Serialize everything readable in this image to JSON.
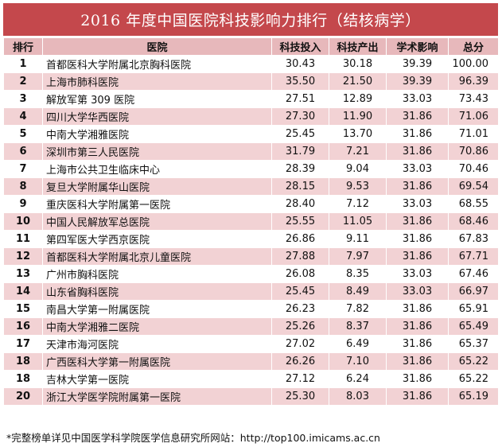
{
  "title": "2016 年度中国医院科技影响力排行（结核病学）",
  "headers": {
    "rank": "排行",
    "hospital": "医院",
    "tech_input": "科技投入",
    "tech_output": "科技产出",
    "academic": "学术影响",
    "total": "总分"
  },
  "rows": [
    {
      "rank": "1",
      "hospital": "首都医科大学附属北京胸科医院",
      "tech_input": "30.43",
      "tech_output": "30.18",
      "academic": "39.39",
      "total": "100.00"
    },
    {
      "rank": "2",
      "hospital": "上海市肺科医院",
      "tech_input": "35.50",
      "tech_output": "21.50",
      "academic": "39.39",
      "total": "96.39"
    },
    {
      "rank": "3",
      "hospital": "解放军第 309 医院",
      "tech_input": "27.51",
      "tech_output": "12.89",
      "academic": "33.03",
      "total": "73.43"
    },
    {
      "rank": "4",
      "hospital": "四川大学华西医院",
      "tech_input": "27.30",
      "tech_output": "11.90",
      "academic": "31.86",
      "total": "71.06"
    },
    {
      "rank": "5",
      "hospital": "中南大学湘雅医院",
      "tech_input": "25.45",
      "tech_output": "13.70",
      "academic": "31.86",
      "total": "71.01"
    },
    {
      "rank": "6",
      "hospital": "深圳市第三人民医院",
      "tech_input": "31.79",
      "tech_output": "7.21",
      "academic": "31.86",
      "total": "70.86"
    },
    {
      "rank": "7",
      "hospital": "上海市公共卫生临床中心",
      "tech_input": "28.39",
      "tech_output": "9.04",
      "academic": "33.03",
      "total": "70.46"
    },
    {
      "rank": "8",
      "hospital": "复旦大学附属华山医院",
      "tech_input": "28.15",
      "tech_output": "9.53",
      "academic": "31.86",
      "total": "69.54"
    },
    {
      "rank": "9",
      "hospital": "重庆医科大学附属第一医院",
      "tech_input": "28.40",
      "tech_output": "7.12",
      "academic": "33.03",
      "total": "68.55"
    },
    {
      "rank": "10",
      "hospital": "中国人民解放军总医院",
      "tech_input": "25.55",
      "tech_output": "11.05",
      "academic": "31.86",
      "total": "68.46"
    },
    {
      "rank": "11",
      "hospital": "第四军医大学西京医院",
      "tech_input": "26.86",
      "tech_output": "9.11",
      "academic": "31.86",
      "total": "67.83"
    },
    {
      "rank": "12",
      "hospital": "首都医科大学附属北京儿童医院",
      "tech_input": "27.88",
      "tech_output": "7.97",
      "academic": "31.86",
      "total": "67.71"
    },
    {
      "rank": "13",
      "hospital": "广州市胸科医院",
      "tech_input": "26.08",
      "tech_output": "8.35",
      "academic": "33.03",
      "total": "67.46"
    },
    {
      "rank": "14",
      "hospital": "山东省胸科医院",
      "tech_input": "25.45",
      "tech_output": "8.49",
      "academic": "33.03",
      "total": "66.97"
    },
    {
      "rank": "15",
      "hospital": "南昌大学第一附属医院",
      "tech_input": "26.23",
      "tech_output": "7.82",
      "academic": "31.86",
      "total": "65.91"
    },
    {
      "rank": "16",
      "hospital": "中南大学湘雅二医院",
      "tech_input": "25.26",
      "tech_output": "8.37",
      "academic": "31.86",
      "total": "65.49"
    },
    {
      "rank": "17",
      "hospital": "天津市海河医院",
      "tech_input": "27.02",
      "tech_output": "6.49",
      "academic": "31.86",
      "total": "65.37"
    },
    {
      "rank": "18",
      "hospital": "广西医科大学第一附属医院",
      "tech_input": "26.26",
      "tech_output": "7.10",
      "academic": "31.86",
      "total": "65.22"
    },
    {
      "rank": "18",
      "hospital": "吉林大学第一医院",
      "tech_input": "27.12",
      "tech_output": "6.24",
      "academic": "31.86",
      "total": "65.22"
    },
    {
      "rank": "20",
      "hospital": "浙江大学医学院附属第一医院",
      "tech_input": "25.30",
      "tech_output": "8.03",
      "academic": "31.86",
      "total": "65.19"
    }
  ],
  "footnote": "*完整榜单详见中国医学科学院医学信息研究所网站：http://top100.imicams.ac.cn",
  "colors": {
    "title_bg": "#c4484c",
    "header_bg": "#e7b8bb",
    "stripe_bg": "#f2d2d4"
  }
}
